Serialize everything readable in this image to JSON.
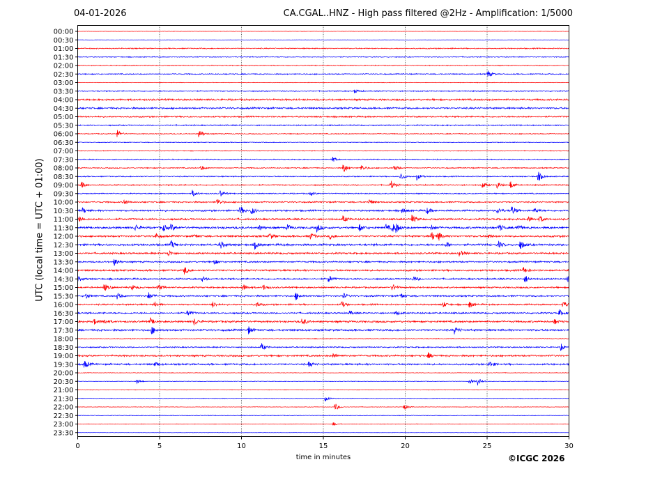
{
  "header": {
    "date": "04-01-2026",
    "title": "CA.CGAL..HNZ - High pass filtered @2Hz - Amplification: 1/5000"
  },
  "footer": {
    "copyright": "©ICGC 2026"
  },
  "chart_data": {
    "type": "line",
    "title": "CA.CGAL..HNZ - High pass filtered @2Hz - Amplification: 1/5000",
    "xlabel": "time in minutes",
    "ylabel": "UTC (local time = UTC + 01:00)",
    "xlim": [
      0,
      30
    ],
    "x_ticks": [
      0,
      5,
      10,
      15,
      20,
      25,
      30
    ],
    "x_tick_labels": [
      "0",
      "5",
      "10",
      "15",
      "20",
      "25",
      "30"
    ],
    "grid": "vertical dotted at 5, 10, 15, 20, 25",
    "row_labels": [
      "00:00",
      "00:30",
      "01:00",
      "01:30",
      "02:00",
      "02:30",
      "03:00",
      "03:30",
      "04:00",
      "04:30",
      "05:00",
      "05:30",
      "06:00",
      "06:30",
      "07:00",
      "07:30",
      "08:00",
      "08:30",
      "09:00",
      "09:30",
      "10:00",
      "10:30",
      "11:00",
      "11:30",
      "12:00",
      "12:30",
      "13:00",
      "13:30",
      "14:00",
      "14:30",
      "15:00",
      "15:30",
      "16:00",
      "16:30",
      "17:00",
      "17:30",
      "18:00",
      "18:30",
      "19:00",
      "19:30",
      "20:00",
      "20:30",
      "21:00",
      "21:30",
      "22:00",
      "22:30",
      "23:00",
      "23:30"
    ],
    "colors": {
      "red": "#ff0000",
      "blue": "#0000ff"
    },
    "noise_levels": [
      0.2,
      0.2,
      0.6,
      0.5,
      0.5,
      0.6,
      0.3,
      0.6,
      1.0,
      1.0,
      0.8,
      0.7,
      0.5,
      0.4,
      0.4,
      0.5,
      0.6,
      0.6,
      0.7,
      0.6,
      0.8,
      1.0,
      1.0,
      1.2,
      1.1,
      1.2,
      1.0,
      0.9,
      1.0,
      0.9,
      0.9,
      0.9,
      0.9,
      0.9,
      1.1,
      1.1,
      0.4,
      0.7,
      1.0,
      1.0,
      0.3,
      0.3,
      0.3,
      0.3,
      0.3,
      0.3,
      0.3,
      0.2
    ],
    "events": [
      {
        "row": "02:30",
        "t": 25.0,
        "amp": 6
      },
      {
        "row": "03:30",
        "t": 16.9,
        "amp": 3
      },
      {
        "row": "06:00",
        "t": 2.4,
        "amp": 6
      },
      {
        "row": "06:00",
        "t": 7.4,
        "amp": 7
      },
      {
        "row": "07:30",
        "t": 15.5,
        "amp": 5
      },
      {
        "row": "08:00",
        "t": 7.5,
        "amp": 4
      },
      {
        "row": "08:00",
        "t": 16.2,
        "amp": 9
      },
      {
        "row": "08:00",
        "t": 17.3,
        "amp": 5
      },
      {
        "row": "08:00",
        "t": 19.3,
        "amp": 5
      },
      {
        "row": "08:30",
        "t": 19.7,
        "amp": 6
      },
      {
        "row": "08:30",
        "t": 20.7,
        "amp": 5
      },
      {
        "row": "08:30",
        "t": 28.1,
        "amp": 8
      },
      {
        "row": "09:00",
        "t": 0.2,
        "amp": 5
      },
      {
        "row": "09:00",
        "t": 19.1,
        "amp": 7
      },
      {
        "row": "09:00",
        "t": 24.7,
        "amp": 5
      },
      {
        "row": "09:00",
        "t": 25.6,
        "amp": 5
      },
      {
        "row": "09:00",
        "t": 26.4,
        "amp": 6
      },
      {
        "row": "09:30",
        "t": 7.0,
        "amp": 5
      },
      {
        "row": "09:30",
        "t": 8.7,
        "amp": 5
      },
      {
        "row": "09:30",
        "t": 14.2,
        "amp": 3
      },
      {
        "row": "10:00",
        "t": 2.8,
        "amp": 5
      },
      {
        "row": "10:00",
        "t": 8.5,
        "amp": 6
      },
      {
        "row": "10:00",
        "t": 17.8,
        "amp": 4
      },
      {
        "row": "10:30",
        "t": 0.3,
        "amp": 4
      },
      {
        "row": "10:30",
        "t": 9.9,
        "amp": 7
      },
      {
        "row": "10:30",
        "t": 10.6,
        "amp": 6
      },
      {
        "row": "10:30",
        "t": 19.8,
        "amp": 4
      },
      {
        "row": "10:30",
        "t": 21.3,
        "amp": 5
      },
      {
        "row": "10:30",
        "t": 25.6,
        "amp": 5
      },
      {
        "row": "10:30",
        "t": 26.5,
        "amp": 7
      },
      {
        "row": "10:30",
        "t": 27.9,
        "amp": 4
      },
      {
        "row": "11:00",
        "t": 0.1,
        "amp": 4
      },
      {
        "row": "11:00",
        "t": 16.2,
        "amp": 5
      },
      {
        "row": "11:00",
        "t": 20.4,
        "amp": 6
      },
      {
        "row": "11:00",
        "t": 27.5,
        "amp": 4
      },
      {
        "row": "11:00",
        "t": 28.2,
        "amp": 5
      },
      {
        "row": "11:30",
        "t": 3.5,
        "amp": 5
      },
      {
        "row": "11:30",
        "t": 5.2,
        "amp": 5
      },
      {
        "row": "11:30",
        "t": 5.7,
        "amp": 5
      },
      {
        "row": "11:30",
        "t": 11.1,
        "amp": 4
      },
      {
        "row": "11:30",
        "t": 12.8,
        "amp": 4
      },
      {
        "row": "11:30",
        "t": 14.6,
        "amp": 6
      },
      {
        "row": "11:30",
        "t": 17.2,
        "amp": 5
      },
      {
        "row": "11:30",
        "t": 18.8,
        "amp": 5
      },
      {
        "row": "11:30",
        "t": 19.2,
        "amp": 6
      },
      {
        "row": "11:30",
        "t": 19.4,
        "amp": 6
      },
      {
        "row": "11:30",
        "t": 21.6,
        "amp": 4
      },
      {
        "row": "11:30",
        "t": 25.7,
        "amp": 6
      },
      {
        "row": "11:30",
        "t": 26.8,
        "amp": 5
      },
      {
        "row": "12:00",
        "t": 4.7,
        "amp": 5
      },
      {
        "row": "12:00",
        "t": 7.1,
        "amp": 3
      },
      {
        "row": "12:00",
        "t": 11.7,
        "amp": 5
      },
      {
        "row": "12:00",
        "t": 14.2,
        "amp": 5
      },
      {
        "row": "12:00",
        "t": 15.4,
        "amp": 4
      },
      {
        "row": "12:00",
        "t": 21.6,
        "amp": 7
      },
      {
        "row": "12:00",
        "t": 22.0,
        "amp": 6
      },
      {
        "row": "12:00",
        "t": 25.0,
        "amp": 4
      },
      {
        "row": "12:30",
        "t": 5.7,
        "amp": 6
      },
      {
        "row": "12:30",
        "t": 8.7,
        "amp": 6
      },
      {
        "row": "12:30",
        "t": 10.8,
        "amp": 6
      },
      {
        "row": "12:30",
        "t": 22.5,
        "amp": 4
      },
      {
        "row": "12:30",
        "t": 25.7,
        "amp": 4
      },
      {
        "row": "12:30",
        "t": 27.0,
        "amp": 7
      },
      {
        "row": "13:00",
        "t": 5.5,
        "amp": 5
      },
      {
        "row": "13:00",
        "t": 23.3,
        "amp": 5
      },
      {
        "row": "13:30",
        "t": 2.2,
        "amp": 6
      },
      {
        "row": "13:30",
        "t": 8.3,
        "amp": 4
      },
      {
        "row": "14:00",
        "t": 6.5,
        "amp": 6
      },
      {
        "row": "14:00",
        "t": 27.2,
        "amp": 5
      },
      {
        "row": "14:00",
        "t": 30.0,
        "amp": 5
      },
      {
        "row": "14:30",
        "t": 0.0,
        "amp": 4
      },
      {
        "row": "14:30",
        "t": 7.6,
        "amp": 4
      },
      {
        "row": "14:30",
        "t": 15.3,
        "amp": 6
      },
      {
        "row": "14:30",
        "t": 20.5,
        "amp": 4
      },
      {
        "row": "14:30",
        "t": 27.3,
        "amp": 6
      },
      {
        "row": "14:30",
        "t": 29.9,
        "amp": 6
      },
      {
        "row": "15:00",
        "t": 1.6,
        "amp": 6
      },
      {
        "row": "15:00",
        "t": 3.3,
        "amp": 4
      },
      {
        "row": "15:00",
        "t": 4.9,
        "amp": 5
      },
      {
        "row": "15:00",
        "t": 10.1,
        "amp": 5
      },
      {
        "row": "15:00",
        "t": 11.3,
        "amp": 5
      },
      {
        "row": "15:00",
        "t": 19.2,
        "amp": 5
      },
      {
        "row": "15:30",
        "t": 0.5,
        "amp": 4
      },
      {
        "row": "15:30",
        "t": 2.4,
        "amp": 5
      },
      {
        "row": "15:30",
        "t": 4.3,
        "amp": 6
      },
      {
        "row": "15:30",
        "t": 13.3,
        "amp": 6
      },
      {
        "row": "15:30",
        "t": 16.2,
        "amp": 4
      },
      {
        "row": "15:30",
        "t": 19.7,
        "amp": 4
      },
      {
        "row": "16:00",
        "t": 4.7,
        "amp": 4
      },
      {
        "row": "16:00",
        "t": 8.2,
        "amp": 5
      },
      {
        "row": "16:00",
        "t": 10.9,
        "amp": 4
      },
      {
        "row": "16:00",
        "t": 16.1,
        "amp": 5
      },
      {
        "row": "16:00",
        "t": 22.3,
        "amp": 4
      },
      {
        "row": "16:00",
        "t": 23.9,
        "amp": 5
      },
      {
        "row": "16:00",
        "t": 29.6,
        "amp": 6
      },
      {
        "row": "16:30",
        "t": 6.7,
        "amp": 5
      },
      {
        "row": "16:30",
        "t": 16.6,
        "amp": 3
      },
      {
        "row": "16:30",
        "t": 19.4,
        "amp": 4
      },
      {
        "row": "16:30",
        "t": 29.4,
        "amp": 5
      },
      {
        "row": "17:00",
        "t": 1.0,
        "amp": 4
      },
      {
        "row": "17:00",
        "t": 1.6,
        "amp": 4
      },
      {
        "row": "17:00",
        "t": 4.4,
        "amp": 5
      },
      {
        "row": "17:00",
        "t": 7.1,
        "amp": 5
      },
      {
        "row": "17:00",
        "t": 13.7,
        "amp": 6
      },
      {
        "row": "17:00",
        "t": 29.1,
        "amp": 4
      },
      {
        "row": "17:30",
        "t": 4.5,
        "amp": 6
      },
      {
        "row": "17:30",
        "t": 10.4,
        "amp": 6
      },
      {
        "row": "17:30",
        "t": 23.0,
        "amp": 5
      },
      {
        "row": "18:30",
        "t": 11.2,
        "amp": 6
      },
      {
        "row": "18:30",
        "t": 29.5,
        "amp": 5
      },
      {
        "row": "19:00",
        "t": 15.6,
        "amp": 4
      },
      {
        "row": "19:00",
        "t": 21.4,
        "amp": 4
      },
      {
        "row": "19:30",
        "t": 0.4,
        "amp": 6
      },
      {
        "row": "19:30",
        "t": 4.7,
        "amp": 4
      },
      {
        "row": "19:30",
        "t": 14.1,
        "amp": 4
      },
      {
        "row": "19:30",
        "t": 25.1,
        "amp": 5
      },
      {
        "row": "20:30",
        "t": 3.6,
        "amp": 4
      },
      {
        "row": "20:30",
        "t": 23.9,
        "amp": 4
      },
      {
        "row": "20:30",
        "t": 24.4,
        "amp": 6
      },
      {
        "row": "21:30",
        "t": 15.1,
        "amp": 4
      },
      {
        "row": "22:00",
        "t": 15.7,
        "amp": 6
      },
      {
        "row": "22:00",
        "t": 19.9,
        "amp": 5
      },
      {
        "row": "23:00",
        "t": 15.6,
        "amp": 3
      }
    ]
  }
}
